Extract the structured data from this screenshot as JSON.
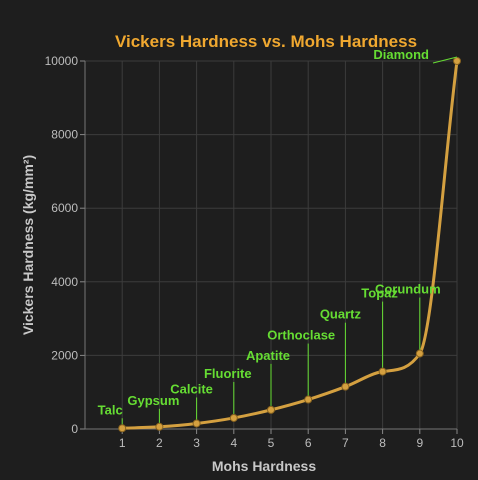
{
  "colors": {
    "background": "#1e1e1e",
    "title": "#f0a830",
    "curve": "#d4a040",
    "marker": "#d4a040",
    "annotation": "#66dd33",
    "grid": "#3c3c3c"
  },
  "chart_data": {
    "type": "line",
    "title": "Vickers Hardness vs. Mohs Hardness",
    "xlabel": "Mohs Hardness",
    "ylabel": "Vickers Hardness (kg/mm²)",
    "xlim": [
      0,
      10
    ],
    "ylim": [
      0,
      10000
    ],
    "x_ticks": [
      "1",
      "2",
      "3",
      "4",
      "5",
      "6",
      "7",
      "8",
      "9",
      "10"
    ],
    "y_ticks": [
      "0",
      "2000",
      "4000",
      "6000",
      "8000",
      "10000"
    ],
    "grid": true,
    "points": [
      {
        "mineral": "Talc",
        "mohs": 1,
        "vickers": 20
      },
      {
        "mineral": "Gypsum",
        "mohs": 2,
        "vickers": 60
      },
      {
        "mineral": "Calcite",
        "mohs": 3,
        "vickers": 150
      },
      {
        "mineral": "Fluorite",
        "mohs": 4,
        "vickers": 300
      },
      {
        "mineral": "Apatite",
        "mohs": 5,
        "vickers": 520
      },
      {
        "mineral": "Orthoclase",
        "mohs": 6,
        "vickers": 800
      },
      {
        "mineral": "Quartz",
        "mohs": 7,
        "vickers": 1150
      },
      {
        "mineral": "Topaz",
        "mohs": 8,
        "vickers": 1560
      },
      {
        "mineral": "Corundum",
        "mohs": 9,
        "vickers": 2050
      },
      {
        "mineral": "Diamond",
        "mohs": 10,
        "vickers": 10000
      }
    ]
  }
}
